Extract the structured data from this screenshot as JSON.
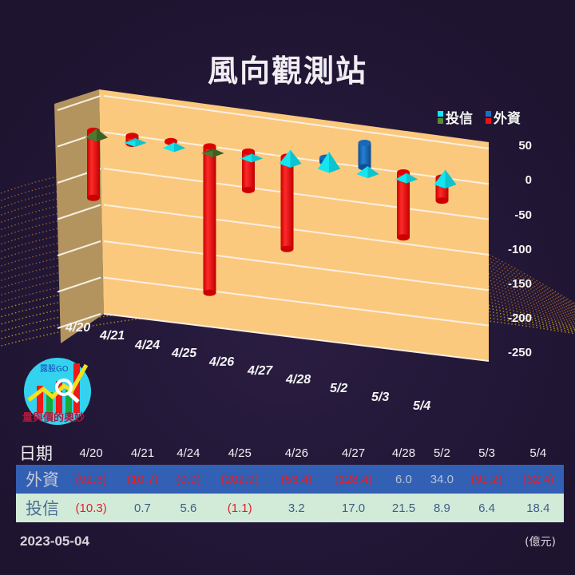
{
  "header": {
    "title": "風向觀測站"
  },
  "legend": [
    {
      "label": "投信",
      "colors": [
        "#12e6f0",
        "#5c8a3a"
      ]
    },
    {
      "label": "外資",
      "colors": [
        "#1d6fc2",
        "#f01010"
      ]
    }
  ],
  "logo": {
    "brand": "露股GO",
    "caption": "量與價的奧妙"
  },
  "footer": {
    "date": "2023-05-04",
    "unit": "(億元)"
  },
  "table": {
    "header_label": "日期",
    "dates": [
      "4/20",
      "4/21",
      "4/24",
      "4/25",
      "4/26",
      "4/27",
      "4/28",
      "5/2",
      "5/3",
      "5/4"
    ],
    "rows": [
      {
        "label": "外資",
        "values": [
          "(92.3)",
          "(10.7)",
          "(0.9)",
          "(202.9)",
          "(53.4)",
          "(128.4)",
          "6.0",
          "34.0",
          "(91.2)",
          "(32.4)"
        ]
      },
      {
        "label": "投信",
        "values": [
          "(10.3)",
          "0.7",
          "5.6",
          "(1.1)",
          "3.2",
          "17.0",
          "21.5",
          "8.9",
          "6.4",
          "18.4"
        ]
      }
    ]
  },
  "colors": {
    "background": "#221634",
    "wall_back": "#fac97e",
    "wall_side": "#b3945f",
    "foreign_negative": "#f01010",
    "foreign_positive": "#1d6fc2",
    "trust_positive": "#12e6f0",
    "trust_negative": "#4d7a30",
    "table_foreign_bg": "#3160b4",
    "table_trust_bg": "#d2ebd9"
  },
  "chart_data": {
    "type": "bar",
    "title": "風向觀測站",
    "categories": [
      "4/20",
      "4/21",
      "4/24",
      "4/25",
      "4/26",
      "4/27",
      "4/28",
      "5/2",
      "5/3",
      "5/4"
    ],
    "series": [
      {
        "name": "外資",
        "values": [
          -92.3,
          -10.7,
          -0.9,
          -202.9,
          -53.4,
          -128.4,
          6.0,
          34.0,
          -91.2,
          -32.4
        ],
        "shape": "cylinder"
      },
      {
        "name": "投信",
        "values": [
          -10.3,
          0.7,
          5.6,
          -1.1,
          3.2,
          17.0,
          21.5,
          8.9,
          6.4,
          18.4
        ],
        "shape": "pyramid"
      }
    ],
    "yticks": [
      "50",
      "0",
      "-50",
      "-100",
      "-150",
      "-200",
      "-250"
    ],
    "ylim": [
      -250,
      50
    ],
    "xlabel": "",
    "ylabel": "",
    "unit": "億元",
    "grid": true,
    "legend_position": "top-right"
  }
}
